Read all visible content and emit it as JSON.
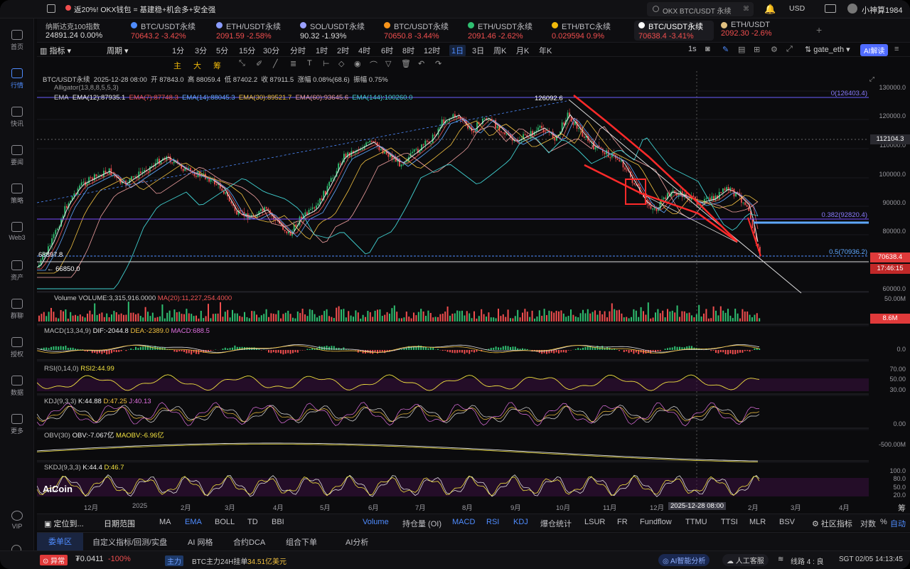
{
  "topbar": {
    "promo": "返20%! OKX钱包 = 基建稳+机会多+安全强",
    "search_placeholder": "OKX BTC/USDT 永续",
    "currency": "USD",
    "username": "小神算1984"
  },
  "nav": [
    {
      "label": "首页"
    },
    {
      "label": "行情"
    },
    {
      "label": "快讯"
    },
    {
      "label": "要闻"
    },
    {
      "label": "策略"
    },
    {
      "label": "Web3"
    },
    {
      "label": "资产"
    },
    {
      "label": "群聊"
    },
    {
      "label": "授权"
    },
    {
      "label": "数据"
    },
    {
      "label": "更多"
    },
    {
      "label": "VIP"
    }
  ],
  "index_ticker": {
    "name": "纳斯达克100指数",
    "value": "24891.24",
    "change": "0.00%"
  },
  "tickers": [
    {
      "name": "BTC/USDT永续",
      "price": "70643.2",
      "change": "-3.42%",
      "color": "#4f8cff"
    },
    {
      "name": "ETH/USDT永续",
      "price": "2091.59",
      "change": "-2.58%",
      "color": "#8a9cff"
    },
    {
      "name": "SOL/USDT永续",
      "price": "90.32",
      "change": "-1.93%",
      "color": "#9aa0ff"
    },
    {
      "name": "BTC/USDT永续",
      "price": "70650.8",
      "change": "-3.44%",
      "color": "#f7931a"
    },
    {
      "name": "ETH/USDT永续",
      "price": "2091.46",
      "change": "-2.62%",
      "color": "#2fbf71"
    },
    {
      "name": "ETH/BTC永续",
      "price": "0.029594",
      "change": "0.9%",
      "color": "#f0b90b"
    },
    {
      "name": "BTC/USDT永续",
      "price": "70638.4",
      "change": "-3.41%",
      "color": "#ffffff"
    },
    {
      "name": "ETH/USDT",
      "price": "2092.30",
      "change": "-2.6%",
      "color": "#e0c080"
    }
  ],
  "toolbar": {
    "indicator": "指标",
    "period": "周期",
    "timeframes": [
      "1分",
      "3分",
      "5分",
      "15分",
      "30分",
      "分时",
      "1时",
      "2时",
      "4时",
      "6时",
      "8时",
      "12时",
      "1日",
      "3日",
      "周K",
      "月K",
      "年K"
    ],
    "selected": "1日",
    "right_tf": "1s",
    "exchange": "gate_eth",
    "ai_button": "AI解读"
  },
  "draw_labels": [
    "主",
    "大",
    "筹"
  ],
  "chart_info": {
    "symbol": "BTC/USDT永续",
    "date": "2025-12-28 08:00",
    "open": "开 87843.0",
    "high": "高 88059.4",
    "low": "低 87402.2",
    "close": "收 87911.5",
    "chg": "涨幅 0.08%(68.6)",
    "amp": "振幅 0.75%",
    "alligator": "Alligator(13,8,8,5,5,3)",
    "ema_label": "EMA",
    "ema12": "EMA(12):87935.1",
    "ema7": "EMA(7):87748.3",
    "ema14": "EMA(14):88045.3",
    "ema30": "EMA(30):89521.7",
    "ema60": "EMA(60):93645.6",
    "ema144": "EMA(144):100260.0"
  },
  "annotations": {
    "peak": "126092.6",
    "fib0": "0(126403.4)",
    "fib382": "0.382(92820.4)",
    "fib05": "0.5(70936.2)",
    "low1": "68897.8",
    "low2": "66850.0"
  },
  "yaxis": [
    "130000.0",
    "120000.0",
    "110000.0",
    "100000.0",
    "90000.0",
    "80000.0",
    "60000.0"
  ],
  "price_tags": {
    "cross": "112104.3",
    "last": "70638.4",
    "countdown": "17:46:15",
    "vol": "8.6M"
  },
  "volume": {
    "label": "Volume",
    "vol": "VOLUME:3,315,916.0000",
    "ma": "MA(20):11,227,254.4000",
    "axis": "50.00M"
  },
  "macd": {
    "label": "MACD(13,34,9)",
    "dif": "DIF:-2044.8",
    "dea": "DEA:-2389.0",
    "macd": "MACD:688.5",
    "axis": "0.0"
  },
  "rsi": {
    "label": "RSI(0,14,0)",
    "rsi2": "RSI2:44.99",
    "axis": [
      "70.00",
      "50.00",
      "30.00"
    ]
  },
  "kdj": {
    "label": "KDJ(9,3,3)",
    "k": "K:44.88",
    "d": "D:47.25",
    "j": "J:40.13",
    "axis": "0.00"
  },
  "obv": {
    "label": "OBV(30)",
    "obv": "OBV:-7.067亿",
    "maobv": "MAOBV:-6.96亿",
    "axis": "-500.00M"
  },
  "skdj": {
    "label": "SKDJ(9,3,3)",
    "k": "K:44.4",
    "d": "D:46.7",
    "axis": [
      "100.0",
      "80.0",
      "50.0",
      "20.0"
    ]
  },
  "xaxis": [
    "12月",
    "2025",
    "2月",
    "3月",
    "4月",
    "5月",
    "6月",
    "7月",
    "8月",
    "9月",
    "10月",
    "11月",
    "12月",
    "2月",
    "3月",
    "4月"
  ],
  "crosshair_date": "2025-12-28 08:00",
  "logo": "AiCoin",
  "bottom_tabs": {
    "locate": "定位到...",
    "range": "日期范围",
    "items": [
      "MA",
      "EMA",
      "BOLL",
      "TD",
      "BBI"
    ],
    "sub": [
      "Volume",
      "持仓量 (OI)",
      "MACD",
      "RSI",
      "KDJ",
      "爆仓统计",
      "LSUR",
      "FR",
      "Fundflow",
      "TTMU",
      "TTSI",
      "MLR",
      "BSV"
    ],
    "community": "社区指标",
    "equal": "对数",
    "pct": "%",
    "auto": "自动",
    "chou": "筹"
  },
  "bottom2": [
    "委单区",
    "自定义指标/回测/实盘",
    "AI 网格",
    "合约DCA",
    "组合下单",
    "AI分析"
  ],
  "status": {
    "alert": "异常",
    "price": "₮0.0411",
    "pct": "-100%",
    "main": "主力",
    "msg": "BTC主力24H挂单",
    "amount": "34.51亿美元",
    "ai": "AI智能分析",
    "service": "人工客服",
    "line": "线路 4 : 良",
    "time": "SGT 02/05 14:13:45"
  }
}
